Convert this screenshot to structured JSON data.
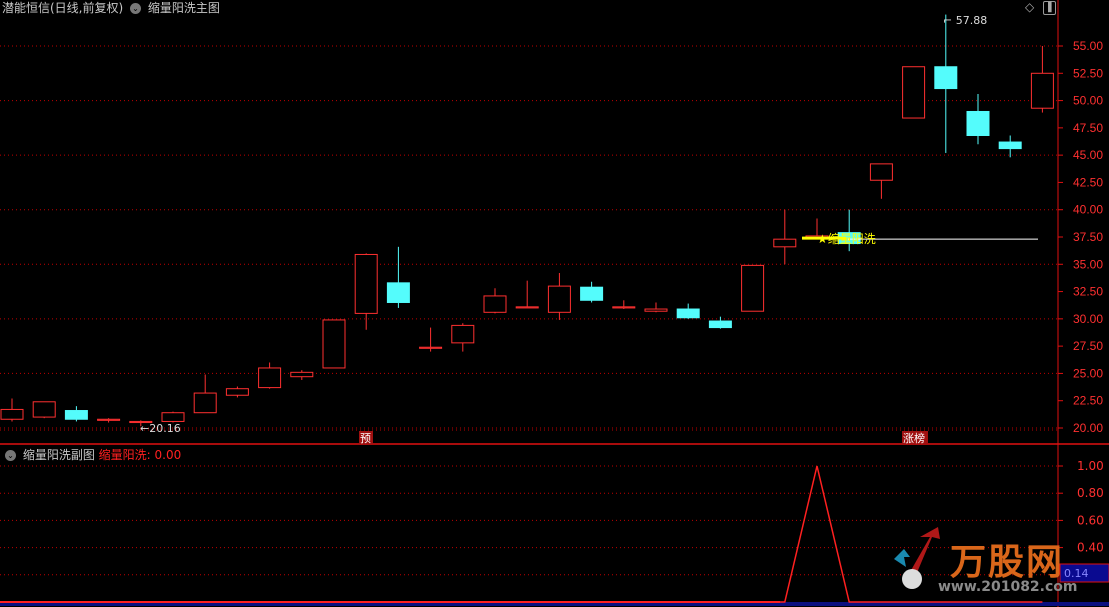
{
  "header": {
    "title": "潜能恒信(日线,前复权)",
    "indicator": "缩量阳洗主图",
    "diamond_icon": "diamond-icon",
    "toggle_icon": "panel-toggle-icon"
  },
  "sub_header": {
    "title": "缩量阳洗副图",
    "series_label": "缩量阳洗:",
    "series_value": "0.00"
  },
  "colors": {
    "up": "#ff3030",
    "down": "#54fcfc",
    "grid": "#c00000",
    "signal": "#ffff00"
  },
  "chart_data": [
    {
      "type": "candlestick",
      "ylim": [
        19.5,
        56.5
      ],
      "y_ticks": [
        "55.00",
        "52.50",
        "50.00",
        "47.50",
        "45.00",
        "42.50",
        "40.00",
        "37.50",
        "35.00",
        "32.50",
        "30.00",
        "27.50",
        "25.00",
        "22.50",
        "20.00"
      ],
      "candles": [
        [
          20.8,
          21.7,
          22.7,
          20.6
        ],
        [
          21.0,
          22.4,
          22.4,
          20.9
        ],
        [
          21.6,
          20.8,
          22.0,
          20.6
        ],
        [
          20.7,
          20.8,
          20.9,
          20.5
        ],
        [
          20.5,
          20.6,
          20.7,
          20.16
        ],
        [
          20.6,
          21.4,
          21.5,
          20.5
        ],
        [
          21.4,
          23.2,
          24.9,
          21.4
        ],
        [
          23.0,
          23.6,
          23.8,
          22.8
        ],
        [
          23.7,
          25.5,
          26.0,
          23.6
        ],
        [
          24.7,
          25.1,
          25.3,
          24.4
        ],
        [
          25.5,
          29.9,
          29.9,
          25.5
        ],
        [
          30.5,
          35.9,
          36.0,
          29.0
        ],
        [
          33.3,
          31.5,
          36.6,
          31.0
        ],
        [
          27.3,
          27.4,
          29.2,
          27.0
        ],
        [
          27.8,
          29.4,
          29.6,
          27.0
        ],
        [
          30.6,
          32.1,
          32.8,
          30.5
        ],
        [
          31.0,
          31.1,
          33.5,
          31.0
        ],
        [
          30.6,
          33.0,
          34.2,
          29.9
        ],
        [
          32.9,
          31.7,
          33.4,
          31.5
        ],
        [
          31.0,
          31.1,
          31.7,
          30.9
        ],
        [
          30.7,
          30.9,
          31.5,
          30.6
        ],
        [
          30.9,
          30.1,
          31.4,
          30.0
        ],
        [
          29.8,
          29.2,
          30.2,
          29.1
        ],
        [
          30.7,
          34.9,
          34.9,
          30.7
        ],
        [
          36.6,
          37.3,
          40.0,
          35.0
        ],
        [
          37.4,
          37.6,
          39.2,
          37.3
        ],
        [
          37.9,
          36.9,
          40.0,
          36.2
        ],
        [
          42.7,
          44.2,
          44.2,
          41.0
        ],
        [
          48.4,
          53.1,
          53.1,
          48.4
        ],
        [
          53.1,
          51.1,
          57.88,
          45.2
        ],
        [
          49.0,
          46.8,
          50.6,
          46.0
        ],
        [
          46.2,
          45.6,
          46.8,
          44.8
        ],
        [
          49.3,
          52.5,
          55.0,
          48.9
        ]
      ],
      "annotations": {
        "low": "←20.16",
        "high": "57.88",
        "signal": "★缩量阳洗",
        "marker_1": "预",
        "marker_2": "涨榜"
      },
      "signal_level": 37.3
    },
    {
      "type": "line",
      "name": "缩量阳洗",
      "ylim": [
        0,
        1.05
      ],
      "y_ticks": [
        "1.00",
        "0.80",
        "0.60",
        "0.40"
      ],
      "cursor_value": "0.14",
      "values": [
        0,
        0,
        0,
        0,
        0,
        0,
        0,
        0,
        0,
        0,
        0,
        0,
        0,
        0,
        0,
        0,
        0,
        0,
        0,
        0,
        0,
        0,
        0,
        0,
        0,
        1,
        0,
        0,
        0,
        0,
        0,
        0,
        0
      ]
    }
  ],
  "logo": {
    "name": "万股网",
    "url": "www.201082.com"
  }
}
